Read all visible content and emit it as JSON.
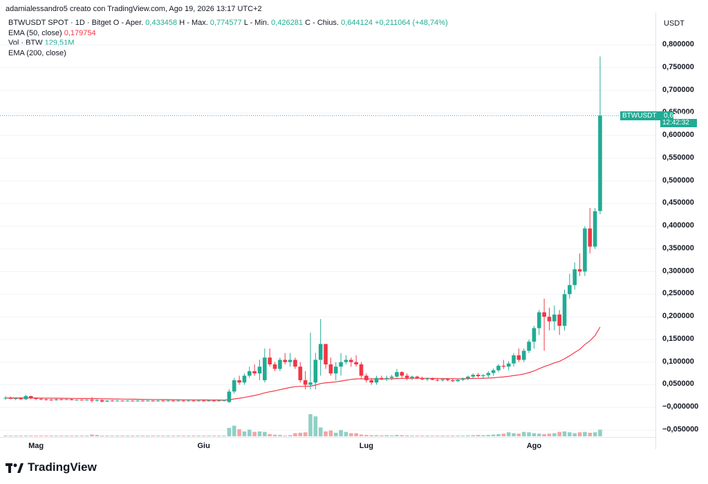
{
  "header": {
    "title": "adamialessandro5 creato con TradingView.com, Ago 19, 2026 13:17 UTC+2"
  },
  "legend": {
    "symbol": "BTWUSDT SPOT · 1D · Bitget",
    "open_label": "O - Aper.",
    "open": "0,433458",
    "high_label": "H - Max.",
    "high": "0,774577",
    "low_label": "L - Min.",
    "low": "0,426281",
    "close_label": "C - Chius.",
    "close": "0,644124",
    "change": "+0,211064 (+48,74%)",
    "ema50_label": "EMA (50, close)",
    "ema50_value": "0,179754",
    "vol_label": "Vol · BTW",
    "vol_value": "129,51M",
    "ema200_label": "EMA (200, close)"
  },
  "price_badge": {
    "symbol": "BTWUSDT",
    "price": "0,644124",
    "countdown": "12:42:32"
  },
  "logo": {
    "text": "TradingView"
  },
  "colors": {
    "up": "#22ab94",
    "down": "#f23645",
    "ema": "#f23645",
    "vol_up": "#8fd0c5",
    "vol_down": "#f5a3a3",
    "grid": "#f0f3fa"
  },
  "chart_data": {
    "type": "candlestick",
    "unit": "USDT",
    "y_ticks": [
      "0,800000",
      "0,750000",
      "0,700000",
      "0,650000",
      "0,600000",
      "0,550000",
      "0,500000",
      "0,450000",
      "0,400000",
      "0,350000",
      "0,300000",
      "0,250000",
      "0,200000",
      "0,150000",
      "0,100000",
      "0,050000",
      "−0,000000",
      "−0,050000"
    ],
    "y_tick_values": [
      0.8,
      0.75,
      0.7,
      0.65,
      0.6,
      0.55,
      0.5,
      0.45,
      0.4,
      0.35,
      0.3,
      0.25,
      0.2,
      0.15,
      0.1,
      0.05,
      0.0,
      -0.05
    ],
    "x_labels": [
      "Mag",
      "Giu",
      "Lug",
      "Ago"
    ],
    "x_label_index": [
      6,
      39,
      71,
      104
    ],
    "ylim": [
      -0.065,
      0.83
    ],
    "candles": [
      [
        0.02,
        0.025,
        0.017,
        0.021
      ],
      [
        0.021,
        0.024,
        0.018,
        0.019
      ],
      [
        0.019,
        0.022,
        0.016,
        0.02
      ],
      [
        0.02,
        0.023,
        0.017,
        0.018
      ],
      [
        0.018,
        0.028,
        0.016,
        0.025
      ],
      [
        0.025,
        0.026,
        0.018,
        0.02
      ],
      [
        0.02,
        0.022,
        0.016,
        0.019
      ],
      [
        0.019,
        0.021,
        0.016,
        0.018
      ],
      [
        0.018,
        0.02,
        0.015,
        0.017
      ],
      [
        0.017,
        0.019,
        0.015,
        0.016
      ],
      [
        0.016,
        0.019,
        0.015,
        0.018
      ],
      [
        0.018,
        0.019,
        0.016,
        0.017
      ],
      [
        0.017,
        0.019,
        0.016,
        0.018
      ],
      [
        0.018,
        0.02,
        0.016,
        0.016
      ],
      [
        0.016,
        0.018,
        0.015,
        0.017
      ],
      [
        0.017,
        0.018,
        0.015,
        0.016
      ],
      [
        0.016,
        0.018,
        0.015,
        0.017
      ],
      [
        0.017,
        0.023,
        0.011,
        0.015
      ],
      [
        0.015,
        0.018,
        0.013,
        0.016
      ],
      [
        0.016,
        0.018,
        0.011,
        0.013
      ],
      [
        0.013,
        0.016,
        0.012,
        0.015
      ],
      [
        0.015,
        0.017,
        0.013,
        0.014
      ],
      [
        0.014,
        0.016,
        0.013,
        0.015
      ],
      [
        0.015,
        0.016,
        0.013,
        0.014
      ],
      [
        0.014,
        0.016,
        0.013,
        0.015
      ],
      [
        0.015,
        0.016,
        0.013,
        0.014
      ],
      [
        0.014,
        0.016,
        0.013,
        0.015
      ],
      [
        0.015,
        0.016,
        0.013,
        0.014
      ],
      [
        0.014,
        0.016,
        0.013,
        0.015
      ],
      [
        0.015,
        0.016,
        0.013,
        0.014
      ],
      [
        0.014,
        0.016,
        0.013,
        0.015
      ],
      [
        0.015,
        0.016,
        0.013,
        0.014
      ],
      [
        0.014,
        0.016,
        0.013,
        0.015
      ],
      [
        0.015,
        0.016,
        0.013,
        0.014
      ],
      [
        0.014,
        0.016,
        0.013,
        0.015
      ],
      [
        0.015,
        0.016,
        0.013,
        0.014
      ],
      [
        0.014,
        0.016,
        0.013,
        0.015
      ],
      [
        0.015,
        0.016,
        0.013,
        0.014
      ],
      [
        0.014,
        0.016,
        0.013,
        0.015
      ],
      [
        0.015,
        0.016,
        0.013,
        0.014
      ],
      [
        0.014,
        0.016,
        0.013,
        0.015
      ],
      [
        0.015,
        0.016,
        0.013,
        0.014
      ],
      [
        0.014,
        0.016,
        0.013,
        0.015
      ],
      [
        0.015,
        0.017,
        0.013,
        0.016
      ],
      [
        0.012,
        0.04,
        0.01,
        0.035
      ],
      [
        0.035,
        0.065,
        0.03,
        0.06
      ],
      [
        0.06,
        0.07,
        0.05,
        0.055
      ],
      [
        0.055,
        0.075,
        0.05,
        0.07
      ],
      [
        0.07,
        0.09,
        0.065,
        0.08
      ],
      [
        0.08,
        0.095,
        0.07,
        0.075
      ],
      [
        0.075,
        0.105,
        0.06,
        0.09
      ],
      [
        0.06,
        0.13,
        0.055,
        0.11
      ],
      [
        0.11,
        0.13,
        0.09,
        0.095
      ],
      [
        0.095,
        0.1,
        0.08,
        0.085
      ],
      [
        0.085,
        0.11,
        0.08,
        0.105
      ],
      [
        0.105,
        0.12,
        0.095,
        0.1
      ],
      [
        0.1,
        0.12,
        0.09,
        0.105
      ],
      [
        0.105,
        0.11,
        0.085,
        0.09
      ],
      [
        0.09,
        0.1,
        0.055,
        0.06
      ],
      [
        0.06,
        0.08,
        0.04,
        0.05
      ],
      [
        0.05,
        0.165,
        0.04,
        0.055
      ],
      [
        0.055,
        0.12,
        0.04,
        0.105
      ],
      [
        0.105,
        0.195,
        0.07,
        0.14
      ],
      [
        0.14,
        0.135,
        0.085,
        0.095
      ],
      [
        0.095,
        0.11,
        0.07,
        0.075
      ],
      [
        0.075,
        0.1,
        0.06,
        0.09
      ],
      [
        0.09,
        0.12,
        0.07,
        0.1
      ],
      [
        0.1,
        0.115,
        0.095,
        0.105
      ],
      [
        0.105,
        0.11,
        0.09,
        0.1
      ],
      [
        0.1,
        0.115,
        0.09,
        0.095
      ],
      [
        0.095,
        0.1,
        0.065,
        0.07
      ],
      [
        0.07,
        0.075,
        0.055,
        0.06
      ],
      [
        0.06,
        0.065,
        0.05,
        0.055
      ],
      [
        0.055,
        0.07,
        0.05,
        0.065
      ],
      [
        0.065,
        0.07,
        0.06,
        0.062
      ],
      [
        0.062,
        0.07,
        0.058,
        0.065
      ],
      [
        0.065,
        0.072,
        0.06,
        0.068
      ],
      [
        0.068,
        0.085,
        0.065,
        0.078
      ],
      [
        0.078,
        0.08,
        0.065,
        0.07
      ],
      [
        0.07,
        0.075,
        0.06,
        0.065
      ],
      [
        0.065,
        0.07,
        0.06,
        0.068
      ],
      [
        0.068,
        0.07,
        0.063,
        0.065
      ],
      [
        0.065,
        0.068,
        0.06,
        0.062
      ],
      [
        0.062,
        0.066,
        0.058,
        0.064
      ],
      [
        0.064,
        0.066,
        0.06,
        0.061
      ],
      [
        0.061,
        0.064,
        0.057,
        0.06
      ],
      [
        0.06,
        0.064,
        0.057,
        0.062
      ],
      [
        0.062,
        0.065,
        0.058,
        0.06
      ],
      [
        0.06,
        0.063,
        0.056,
        0.058
      ],
      [
        0.058,
        0.063,
        0.056,
        0.061
      ],
      [
        0.061,
        0.066,
        0.058,
        0.064
      ],
      [
        0.064,
        0.07,
        0.06,
        0.068
      ],
      [
        0.068,
        0.075,
        0.064,
        0.072
      ],
      [
        0.072,
        0.076,
        0.066,
        0.069
      ],
      [
        0.069,
        0.074,
        0.063,
        0.071
      ],
      [
        0.071,
        0.08,
        0.066,
        0.076
      ],
      [
        0.076,
        0.086,
        0.07,
        0.082
      ],
      [
        0.082,
        0.096,
        0.078,
        0.092
      ],
      [
        0.092,
        0.105,
        0.085,
        0.09
      ],
      [
        0.09,
        0.102,
        0.082,
        0.097
      ],
      [
        0.097,
        0.12,
        0.09,
        0.115
      ],
      [
        0.115,
        0.13,
        0.1,
        0.105
      ],
      [
        0.105,
        0.13,
        0.1,
        0.125
      ],
      [
        0.125,
        0.15,
        0.12,
        0.145
      ],
      [
        0.145,
        0.18,
        0.13,
        0.175
      ],
      [
        0.175,
        0.215,
        0.16,
        0.21
      ],
      [
        0.21,
        0.24,
        0.125,
        0.2
      ],
      [
        0.2,
        0.22,
        0.17,
        0.19
      ],
      [
        0.19,
        0.225,
        0.17,
        0.205
      ],
      [
        0.205,
        0.215,
        0.16,
        0.18
      ],
      [
        0.18,
        0.26,
        0.17,
        0.25
      ],
      [
        0.25,
        0.295,
        0.24,
        0.27
      ],
      [
        0.27,
        0.32,
        0.26,
        0.305
      ],
      [
        0.305,
        0.34,
        0.29,
        0.3
      ],
      [
        0.3,
        0.4,
        0.29,
        0.395
      ],
      [
        0.395,
        0.44,
        0.34,
        0.355
      ],
      [
        0.355,
        0.44,
        0.35,
        0.433
      ],
      [
        0.433458,
        0.774577,
        0.426281,
        0.644124
      ]
    ],
    "volume": [
      2,
      1,
      1,
      1,
      2,
      1,
      1,
      1,
      1,
      1,
      1,
      1,
      1,
      1,
      1,
      1,
      1,
      8,
      6,
      3,
      1,
      1,
      1,
      1,
      1,
      1,
      1,
      1,
      1,
      1,
      1,
      1,
      1,
      1,
      1,
      1,
      1,
      1,
      1,
      1,
      1,
      1,
      1,
      1,
      38,
      48,
      32,
      22,
      30,
      20,
      22,
      20,
      10,
      7,
      6,
      3,
      5,
      14,
      16,
      18,
      100,
      90,
      40,
      22,
      26,
      16,
      28,
      20,
      14,
      14,
      8,
      6,
      5,
      5,
      4,
      5,
      4,
      6,
      5,
      4,
      3,
      3,
      2,
      2,
      2,
      2,
      2,
      2,
      2,
      2,
      3,
      4,
      5,
      6,
      5,
      6,
      8,
      10,
      12,
      18,
      14,
      12,
      20,
      18,
      14,
      12,
      10,
      12,
      14,
      20,
      22,
      18,
      14,
      18,
      20,
      16,
      18,
      30
    ]
  }
}
